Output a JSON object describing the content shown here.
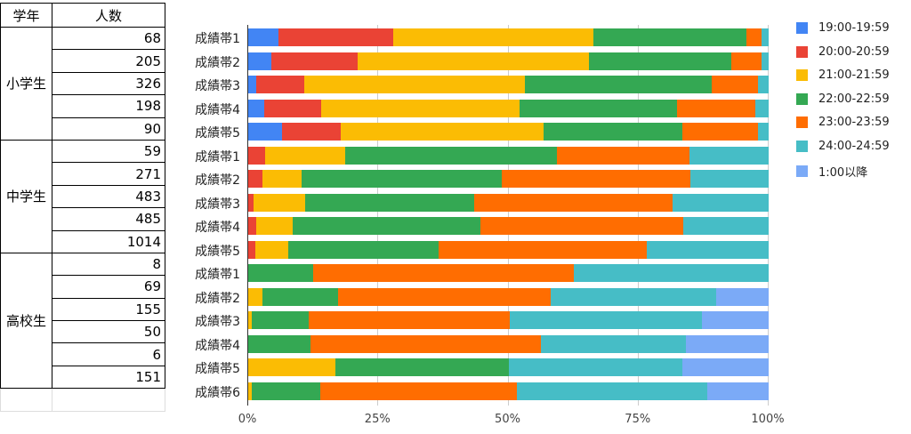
{
  "table": {
    "headers": [
      "学年",
      "人数"
    ],
    "groups": [
      {
        "name": "小学生",
        "counts": [
          "68",
          "205",
          "326",
          "198",
          "90"
        ]
      },
      {
        "name": "中学生",
        "counts": [
          "59",
          "271",
          "483",
          "485",
          "1014"
        ]
      },
      {
        "name": "高校生",
        "counts": [
          "8",
          "69",
          "155",
          "50",
          "6",
          "151"
        ]
      }
    ]
  },
  "chart_data": {
    "type": "bar",
    "stacked": "percent",
    "orientation": "horizontal",
    "categories": [
      "小学生 成績帯1",
      "小学生 成績帯2",
      "小学生 成績帯3",
      "小学生 成績帯4",
      "小学生 成績帯5",
      "中学生 成績帯1",
      "中学生 成績帯2",
      "中学生 成績帯3",
      "中学生 成績帯4",
      "中学生 成績帯5",
      "高校生 成績帯1",
      "高校生 成績帯2",
      "高校生 成績帯3",
      "高校生 成績帯4",
      "高校生 成績帯5",
      "高校生 成績帯6"
    ],
    "row_labels": [
      "成績帯1",
      "成績帯2",
      "成績帯3",
      "成績帯4",
      "成績帯5",
      "成績帯1",
      "成績帯2",
      "成績帯3",
      "成績帯4",
      "成績帯5",
      "成績帯1",
      "成績帯2",
      "成績帯3",
      "成績帯4",
      "成績帯5",
      "成績帯6"
    ],
    "series": [
      {
        "name": "19:00-19:59",
        "color": "#4285f4",
        "values": [
          5.8,
          4.5,
          1.6,
          3.0,
          6.5,
          0,
          0,
          0,
          0,
          0,
          0,
          0,
          0,
          0,
          0,
          0
        ]
      },
      {
        "name": "20:00-20:59",
        "color": "#ea4335",
        "values": [
          22.1,
          16.6,
          9.1,
          11.1,
          11.3,
          3.3,
          2.7,
          1.0,
          1.6,
          1.4,
          0,
          0,
          0,
          0,
          0,
          0
        ]
      },
      {
        "name": "21:00-21:59",
        "color": "#fbbc04",
        "values": [
          38.4,
          44.3,
          42.4,
          38.0,
          39.0,
          15.3,
          7.5,
          9.9,
          6.9,
          6.3,
          0,
          2.8,
          0.7,
          0,
          16.7,
          0.7
        ]
      },
      {
        "name": "22:00-22:59",
        "color": "#34a853",
        "values": [
          29.5,
          27.4,
          35.9,
          30.3,
          26.6,
          40.8,
          38.5,
          32.5,
          36.2,
          28.8,
          12.4,
          14.5,
          10.9,
          11.9,
          33.4,
          13.2
        ]
      },
      {
        "name": "23:00-23:59",
        "color": "#ff6d01",
        "values": [
          2.8,
          5.8,
          8.9,
          15.1,
          14.5,
          25.4,
          36.2,
          38.2,
          38.9,
          40.0,
          50.2,
          40.8,
          38.7,
          44.3,
          0,
          37.7
        ]
      },
      {
        "name": "24:00-24:59",
        "color": "#46bdc6",
        "values": [
          1.4,
          1.4,
          2.1,
          2.5,
          2.1,
          15.2,
          15.1,
          18.4,
          16.4,
          23.5,
          37.4,
          31.8,
          36.8,
          27.9,
          33.3,
          36.6
        ]
      },
      {
        "name": "1:00以降",
        "color": "#7baaf7",
        "values": [
          0,
          0,
          0,
          0,
          0,
          0,
          0,
          0,
          0,
          0,
          0,
          10.1,
          12.9,
          15.9,
          16.6,
          11.8
        ]
      }
    ],
    "xticks": [
      "0%",
      "25%",
      "50%",
      "75%",
      "100%"
    ],
    "xlim": [
      0,
      100
    ],
    "legend": "right"
  }
}
